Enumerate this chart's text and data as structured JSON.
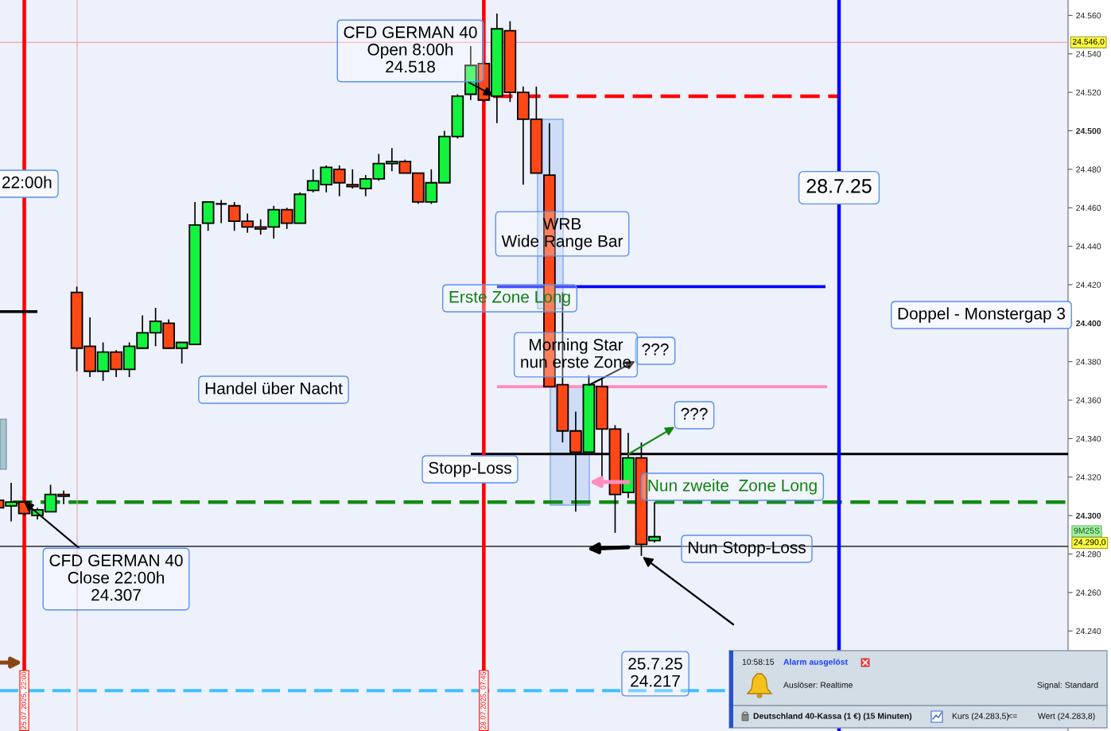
{
  "chart_data": {
    "type": "candlestick",
    "categories": [
      null,
      null,
      "25.07.2025, 22:00",
      null,
      null,
      null,
      null,
      null,
      null,
      null,
      null,
      null,
      null,
      null,
      null,
      null,
      null,
      null,
      null,
      null,
      null,
      null,
      null,
      null,
      null,
      null,
      null,
      null,
      null,
      null,
      null,
      null,
      null,
      null,
      null,
      null,
      null,
      "28.07.2025, 07:45",
      null,
      null,
      null,
      null,
      null,
      null,
      null,
      null,
      null,
      null,
      null,
      null,
      null,
      null,
      null,
      null,
      null,
      null,
      null,
      null,
      null,
      null,
      null,
      null,
      null,
      null,
      null,
      null,
      null,
      null,
      null,
      null,
      null,
      null,
      null,
      null,
      null,
      null,
      null,
      null,
      null,
      null,
      null,
      null
    ],
    "ohlc": [
      [
        24308,
        24309,
        24303,
        24304
      ],
      [
        24305,
        24317,
        24297,
        24307
      ],
      [
        24307,
        24308,
        24300,
        24301
      ],
      [
        24300,
        24304,
        24298,
        24303
      ],
      [
        24302,
        24316,
        24302,
        24311
      ],
      [
        24311,
        24313,
        24306,
        24310
      ],
      [
        24416,
        24419,
        24375,
        24387
      ],
      [
        24388,
        24403,
        24372,
        24375
      ],
      [
        24375,
        24390,
        24370,
        24385
      ],
      [
        24385,
        24386,
        24372,
        24376
      ],
      [
        24376,
        24390,
        24372,
        24388
      ],
      [
        24387,
        24404,
        24387,
        24395
      ],
      [
        24395,
        24408,
        24388,
        24401
      ],
      [
        24400,
        24402,
        24387,
        24387
      ],
      [
        24387,
        24390,
        24379,
        24390
      ],
      [
        24389,
        24463,
        24389,
        24451
      ],
      [
        24452,
        24463,
        24448,
        24463
      ],
      [
        24462,
        24464,
        24452,
        24462
      ],
      [
        24461,
        24463,
        24448,
        24453
      ],
      [
        24453,
        24457,
        24447,
        24450
      ],
      [
        24450,
        24454,
        24446,
        24449
      ],
      [
        24450,
        24461,
        24444,
        24459
      ],
      [
        24459,
        24460,
        24449,
        24452
      ],
      [
        24452,
        24468,
        24452,
        24467
      ],
      [
        24469,
        24480,
        24468,
        24474
      ],
      [
        24472,
        24482,
        24468,
        24481
      ],
      [
        24480,
        24482,
        24466,
        24473
      ],
      [
        24472,
        24480,
        24470,
        24471
      ],
      [
        24470,
        24477,
        24466,
        24475
      ],
      [
        24475,
        24488,
        24474,
        24483
      ],
      [
        24483,
        24491,
        24479,
        24484
      ],
      [
        24484,
        24485,
        24478,
        24478
      ],
      [
        24478,
        24478,
        24462,
        24463
      ],
      [
        24463,
        24480,
        24462,
        24473
      ],
      [
        24473,
        24500,
        24473,
        24497
      ],
      [
        24497,
        24519,
        24496,
        24518
      ],
      [
        24519,
        24544,
        24516,
        24534
      ],
      [
        24535,
        24535,
        24515,
        24516
      ],
      [
        24518,
        24561,
        24504,
        24553
      ],
      [
        24552,
        24557,
        24515,
        24520
      ],
      [
        24520,
        24523,
        24472,
        24506
      ],
      [
        24506,
        24523,
        24478,
        24478
      ],
      [
        24477,
        24504,
        24367,
        24367
      ],
      [
        24368,
        24416,
        24338,
        24344
      ],
      [
        24344,
        24354,
        24302,
        24333
      ],
      [
        24333,
        24373,
        24333,
        24368
      ],
      [
        24367,
        24371,
        24320,
        24345
      ],
      [
        24345,
        24347,
        24291,
        24311
      ],
      [
        24312,
        24343,
        24309,
        24330
      ],
      [
        24330,
        24338,
        24279,
        24285
      ],
      [
        24287,
        24307,
        24286,
        24289
      ],
      null,
      null,
      null,
      null,
      null,
      null,
      null,
      null,
      null,
      null,
      null,
      null,
      null,
      null,
      null,
      null,
      null,
      null,
      null,
      null,
      null,
      null,
      null,
      null,
      null,
      null,
      null,
      null,
      null,
      null,
      null
    ],
    "series": [
      {
        "type": "line",
        "color": "#000000",
        "values": [
          24406,
          24406,
          24406,
          24406,
          null,
          null,
          null,
          null,
          null,
          null,
          null,
          null,
          null,
          null,
          null,
          null,
          null,
          null,
          null,
          null,
          null,
          null,
          null,
          null,
          null,
          null,
          null,
          null,
          null,
          null,
          null,
          null,
          null,
          null,
          null,
          null,
          null,
          null,
          null,
          null,
          null,
          null,
          null,
          null,
          null,
          null,
          null,
          null,
          null,
          null,
          null,
          null,
          null,
          null,
          null,
          null,
          null,
          null,
          null,
          null,
          null,
          null,
          null,
          null,
          null,
          null,
          null,
          null,
          null,
          null,
          null,
          null,
          null,
          null,
          null,
          null,
          null,
          null,
          null,
          null,
          null,
          null
        ]
      }
    ],
    "ylim": [
      24188,
      24568
    ],
    "yticks": [
      {
        "value": 24240,
        "label": "24.240"
      },
      {
        "value": 24260,
        "label": "24.260"
      },
      {
        "value": 24280,
        "label": "24.280"
      },
      {
        "value": 24300,
        "label": "24.300"
      },
      {
        "value": 24320,
        "label": "24.320"
      },
      {
        "value": 24340,
        "label": "24.340"
      },
      {
        "value": 24360,
        "label": "24.360"
      },
      {
        "value": 24380,
        "label": "24.380"
      },
      {
        "value": 24400,
        "label": "24.400"
      },
      {
        "value": 24420,
        "label": "24.420"
      },
      {
        "value": 24440,
        "label": "24.440"
      },
      {
        "value": 24460,
        "label": "24.460"
      },
      {
        "value": 24480,
        "label": "24.480"
      },
      {
        "value": 24500,
        "label": "24.500"
      },
      {
        "value": 24520,
        "label": "24.520"
      },
      {
        "value": 24540,
        "label": "24.540"
      },
      {
        "value": 24560,
        "label": "24.560"
      }
    ],
    "grid": false,
    "ref_lines": [
      {
        "axis": "y",
        "value": 24546,
        "label": "24.546,0",
        "color": "#ff8c8c",
        "line_style": "solid"
      },
      {
        "axis": "y",
        "value": 24518,
        "color": "#ff0000",
        "line_style": "dashed"
      },
      {
        "axis": "y",
        "value": 24419,
        "color": "#0000ff",
        "line_style": "solid"
      },
      {
        "axis": "y",
        "value": 24367,
        "color": "#ff8cbe",
        "line_style": "solid"
      },
      {
        "axis": "y",
        "value": 24332,
        "color": "#000000",
        "line_style": "solid"
      },
      {
        "axis": "y",
        "value": 24307,
        "color": "#138a13",
        "line_style": "dashed"
      },
      {
        "axis": "y",
        "value": 24284,
        "color": "#000000",
        "line_style": "solid"
      },
      {
        "axis": "y",
        "value": 24209,
        "color": "#40bfff",
        "line_style": "dashed"
      },
      {
        "axis": "x",
        "value": "25.07.2025, 22:00",
        "color": "#ff0000",
        "line_style": "solid"
      },
      {
        "axis": "x",
        "value": "28.07.2025, 07:45",
        "color": "#ff0000",
        "line_style": "solid"
      }
    ],
    "annotations": [
      "CFD GERMAN 40\nOpen 8:00h\n24.518",
      "22:00h",
      "WRB\nWide Range Bar",
      "28.7.25",
      "Erste Zone Long",
      "Doppel - Monstergap 3",
      "Morning Star\nnun erste Zone",
      "???",
      "Handel über Nacht",
      "???",
      "Stopp-Loss",
      "Nun zweite  Zone Long",
      {
        "text": "CFD GERMAN 40\nClose 22:00h\n24.307",
        "x": "25.07.2025, 22:00",
        "y": 24307
      },
      "Nun Stopp-Loss",
      "25.7.25\n24.217",
      "9M25S",
      "24.290,0",
      "10:58:15",
      "Alarm ausgelöst",
      "Auslöser: Realtime",
      "Signal: Standard",
      "Deutschland 40-Kassa (1 €) (15 Minuten)",
      "Kurs (24.283,5)",
      "<=",
      "Wert (24.283,8)"
    ]
  }
}
